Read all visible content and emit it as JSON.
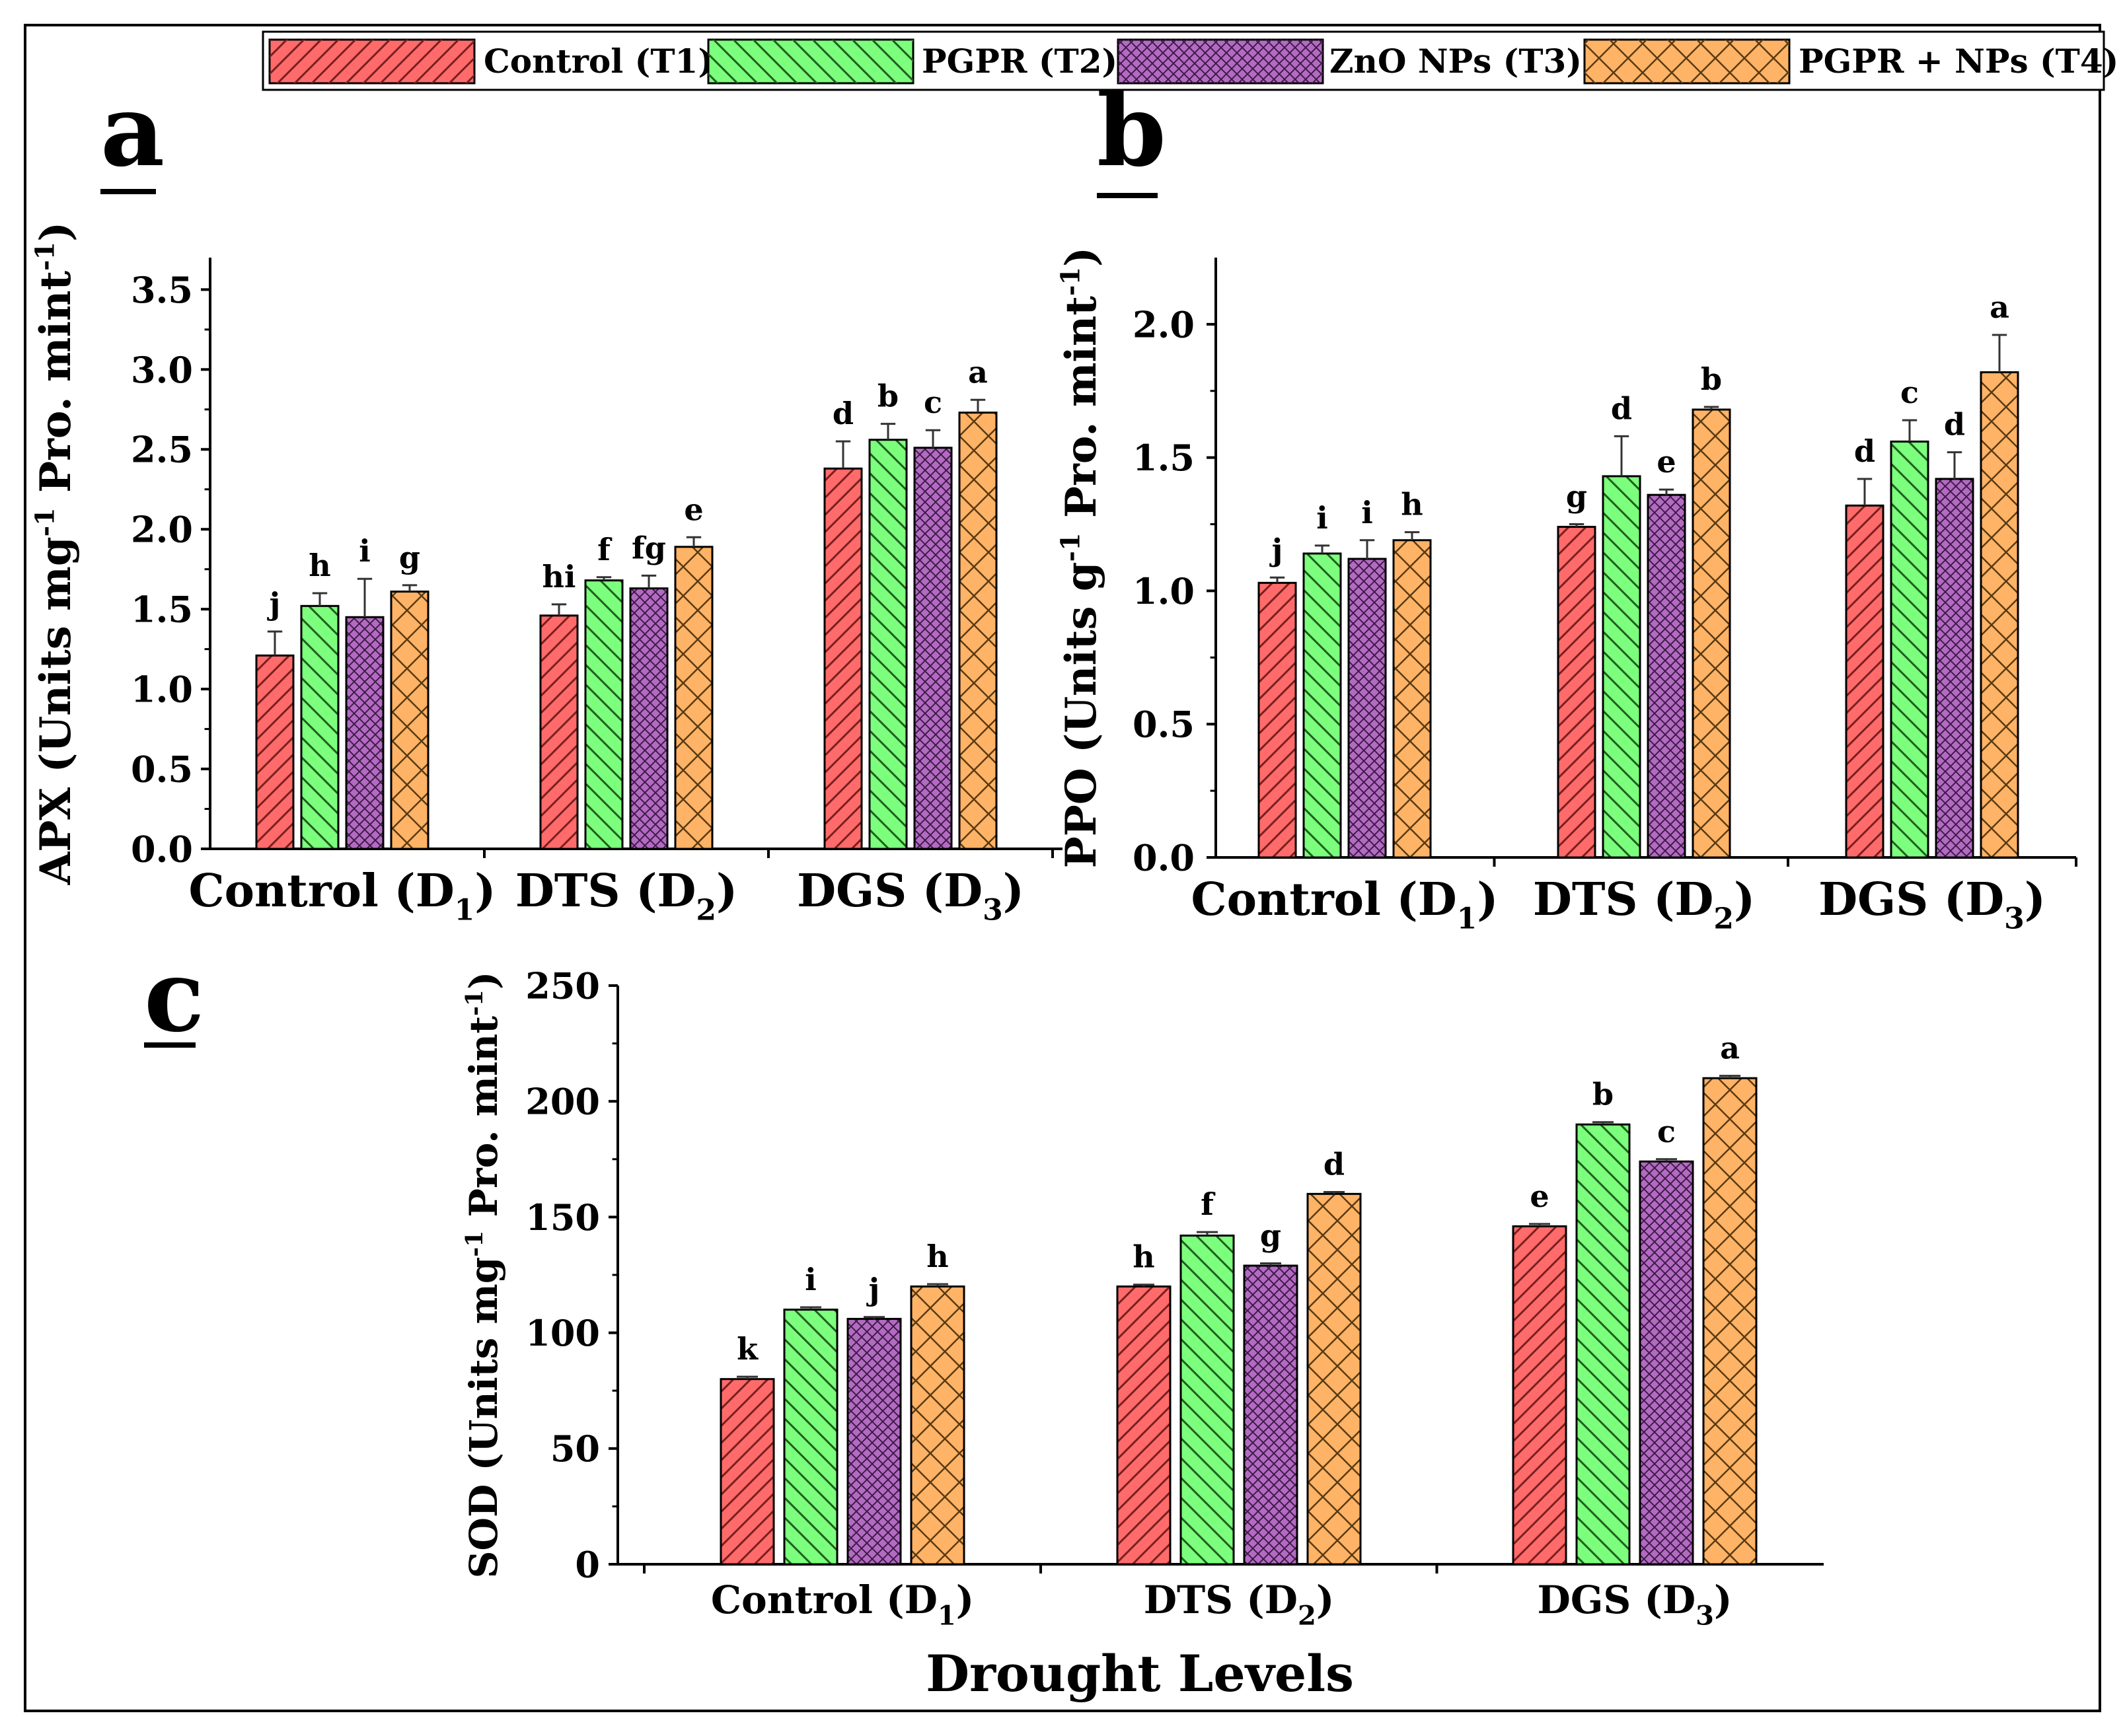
{
  "legend": {
    "entries": [
      {
        "label": "Control (T1)",
        "color": "#ff6b6b",
        "pattern": "diag-right"
      },
      {
        "label": "PGPR (T2)",
        "color": "#7cff7c",
        "pattern": "diag-left"
      },
      {
        "label": "ZnO NPs (T3)",
        "color": "#b36bc2",
        "pattern": "crosshatch-fine"
      },
      {
        "label": "PGPR + NPs (T4)",
        "color": "#ffb366",
        "pattern": "crosshatch-wide"
      }
    ]
  },
  "x_axis_title": "Drought Levels",
  "chart_data": [
    {
      "type": "bar",
      "panel_label": "a",
      "ylabel": "APX (Units mg-1 Pro. mint-1)",
      "ylabel_parts": {
        "pre": "APX (Units mg",
        "sup1": "-1",
        "mid": " Pro. mint",
        "sup2": "-1",
        "post": ")"
      },
      "categories": [
        {
          "main": "Control (D",
          "sub": "1",
          "close": ")"
        },
        {
          "main": "DTS (D",
          "sub": "2",
          "close": ")"
        },
        {
          "main": "DGS (D",
          "sub": "3",
          "close": ")"
        }
      ],
      "ylim": [
        0,
        3.7
      ],
      "yticks": [
        "0.0",
        "0.5",
        "1.0",
        "1.5",
        "2.0",
        "2.5",
        "3.0",
        "3.5"
      ],
      "series": [
        {
          "name": "Control (T1)",
          "values": [
            1.21,
            1.46,
            2.38
          ],
          "errors": [
            0.15,
            0.07,
            0.17
          ],
          "letters": [
            "j",
            "hi",
            "d"
          ]
        },
        {
          "name": "PGPR (T2)",
          "values": [
            1.52,
            1.68,
            2.56
          ],
          "errors": [
            0.08,
            0.02,
            0.1
          ],
          "letters": [
            "h",
            "f",
            "b"
          ]
        },
        {
          "name": "ZnO NPs (T3)",
          "values": [
            1.45,
            1.63,
            2.51
          ],
          "errors": [
            0.24,
            0.08,
            0.11
          ],
          "letters": [
            "i",
            "fg",
            "c"
          ]
        },
        {
          "name": "PGPR + NPs (T4)",
          "values": [
            1.61,
            1.89,
            2.73
          ],
          "errors": [
            0.04,
            0.06,
            0.08
          ],
          "letters": [
            "g",
            "e",
            "a"
          ]
        }
      ]
    },
    {
      "type": "bar",
      "panel_label": "b",
      "ylabel": "PPO (Units g-1 Pro. mint-1)",
      "ylabel_parts": {
        "pre": "PPO (Units g",
        "sup1": "-1",
        "mid": " Pro. mint",
        "sup2": "-1",
        "post": ")"
      },
      "categories": [
        {
          "main": "Control (D",
          "sub": "1",
          "close": ")"
        },
        {
          "main": "DTS (D",
          "sub": "2",
          "close": ")"
        },
        {
          "main": "DGS (D",
          "sub": "3",
          "close": ")"
        }
      ],
      "ylim": [
        0,
        2.25
      ],
      "yticks": [
        "0.0",
        "0.5",
        "1.0",
        "1.5",
        "2.0"
      ],
      "series": [
        {
          "name": "Control (T1)",
          "values": [
            1.03,
            1.24,
            1.32
          ],
          "errors": [
            0.02,
            0.01,
            0.1
          ],
          "letters": [
            "j",
            "g",
            "d"
          ]
        },
        {
          "name": "PGPR (T2)",
          "values": [
            1.14,
            1.43,
            1.56
          ],
          "errors": [
            0.03,
            0.15,
            0.08
          ],
          "letters": [
            "i",
            "d",
            "c"
          ]
        },
        {
          "name": "ZnO NPs (T3)",
          "values": [
            1.12,
            1.36,
            1.42
          ],
          "errors": [
            0.07,
            0.02,
            0.1
          ],
          "letters": [
            "i",
            "e",
            "d"
          ]
        },
        {
          "name": "PGPR + NPs (T4)",
          "values": [
            1.19,
            1.68,
            1.82
          ],
          "errors": [
            0.03,
            0.01,
            0.14
          ],
          "letters": [
            "h",
            "b",
            "a"
          ]
        }
      ]
    },
    {
      "type": "bar",
      "panel_label": "c",
      "ylabel": "SOD (Units mg-1 Pro. mint-1)",
      "ylabel_parts": {
        "pre": "SOD (Units mg",
        "sup1": "-1",
        "mid": " Pro. mint",
        "sup2": "-1",
        "post": ")"
      },
      "categories": [
        {
          "main": "Control (D",
          "sub": "1",
          "close": ")"
        },
        {
          "main": "DTS (D",
          "sub": "2",
          "close": ")"
        },
        {
          "main": "DGS (D",
          "sub": "3",
          "close": ")"
        }
      ],
      "ylim": [
        0,
        250
      ],
      "yticks": [
        "0",
        "50",
        "100",
        "150",
        "200",
        "250"
      ],
      "series": [
        {
          "name": "Control (T1)",
          "values": [
            80,
            120,
            146
          ],
          "errors": [
            1,
            0.8,
            1
          ],
          "letters": [
            "k",
            "h",
            "e"
          ]
        },
        {
          "name": "PGPR (T2)",
          "values": [
            110,
            142,
            190
          ],
          "errors": [
            1,
            1.5,
            1
          ],
          "letters": [
            "i",
            "f",
            "b"
          ]
        },
        {
          "name": "ZnO NPs (T3)",
          "values": [
            106,
            129,
            174
          ],
          "errors": [
            0.8,
            1,
            1
          ],
          "letters": [
            "j",
            "g",
            "c"
          ]
        },
        {
          "name": "PGPR + NPs (T4)",
          "values": [
            120,
            160,
            210
          ],
          "errors": [
            1,
            0.8,
            1
          ],
          "letters": [
            "h",
            "d",
            "a"
          ]
        }
      ]
    }
  ]
}
